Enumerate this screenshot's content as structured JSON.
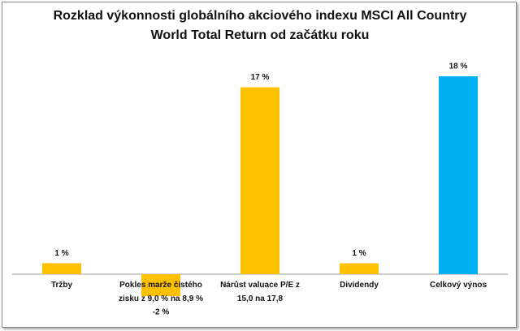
{
  "chart_data": {
    "type": "bar",
    "title": "Rozklad výkonnosti globálního akciového indexu MSCI All Country World Total Return od začátku roku",
    "categories": [
      "Tržby",
      "Pokles marže čistého zisku z 9,0 % na 8,9 %",
      "Nárůst valuace P/E z 15,0 na 17,8",
      "Dividendy",
      "Celkový výnos"
    ],
    "values": [
      1,
      -2,
      17,
      1,
      18
    ],
    "value_labels": [
      "1 %",
      "-2 %",
      "17 %",
      "1 %",
      "18 %"
    ],
    "colors": [
      "#ffc000",
      "#ffc000",
      "#ffc000",
      "#ffc000",
      "#00b0f0"
    ]
  }
}
